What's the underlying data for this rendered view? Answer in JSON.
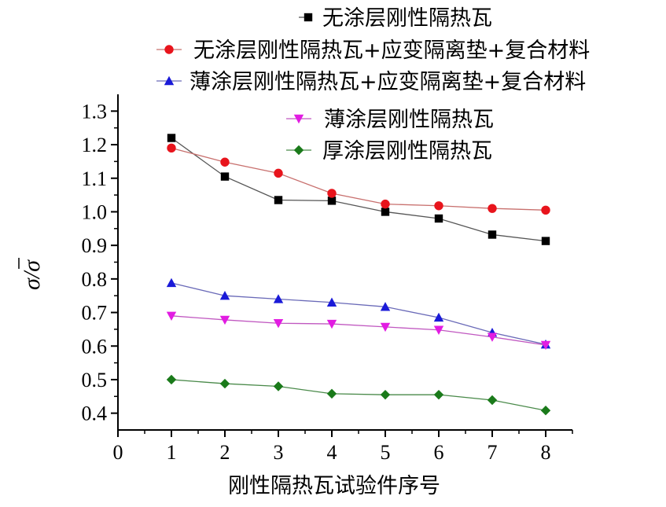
{
  "chart_data": {
    "type": "line",
    "xlabel": "刚性隔热瓦试验件序号",
    "ylabel": "σ/σ",
    "x": [
      1,
      2,
      3,
      4,
      5,
      6,
      7,
      8
    ],
    "xlim": [
      0,
      8.5
    ],
    "ylim": [
      0.35,
      1.35
    ],
    "x_ticks": [
      0,
      1,
      2,
      3,
      4,
      5,
      6,
      7,
      8
    ],
    "y_ticks": [
      0.4,
      0.5,
      0.6,
      0.7,
      0.8,
      0.9,
      1.0,
      1.1,
      1.2,
      1.3
    ],
    "grid": false,
    "legend_position": "top-right",
    "series": [
      {
        "name": "无涂层刚性隔热瓦",
        "marker": "square",
        "color": "#000000",
        "line_color": "#555555",
        "values": [
          1.22,
          1.105,
          1.035,
          1.033,
          1.0,
          0.98,
          0.932,
          0.913
        ]
      },
      {
        "name": "无涂层刚性隔热瓦+应变隔离垫+复合材料",
        "marker": "circle",
        "color": "#e8141c",
        "line_color": "#c8706e",
        "values": [
          1.19,
          1.148,
          1.115,
          1.055,
          1.023,
          1.018,
          1.01,
          1.005
        ]
      },
      {
        "name": "薄涂层刚性隔热瓦+应变隔离垫+复合材料",
        "marker": "triangle-up",
        "color": "#1a1ad8",
        "line_color": "#6a6ab8",
        "values": [
          0.788,
          0.75,
          0.74,
          0.73,
          0.717,
          0.685,
          0.64,
          0.605
        ]
      },
      {
        "name": "薄涂层刚性隔热瓦",
        "marker": "triangle-down",
        "color": "#e21ce2",
        "line_color": "#c058c0",
        "values": [
          0.69,
          0.678,
          0.668,
          0.666,
          0.657,
          0.648,
          0.627,
          0.603
        ]
      },
      {
        "name": "厚涂层刚性隔热瓦",
        "marker": "diamond",
        "color": "#1a7a1a",
        "line_color": "#4a8a4a",
        "values": [
          0.5,
          0.488,
          0.48,
          0.458,
          0.455,
          0.455,
          0.439,
          0.408
        ]
      }
    ]
  }
}
